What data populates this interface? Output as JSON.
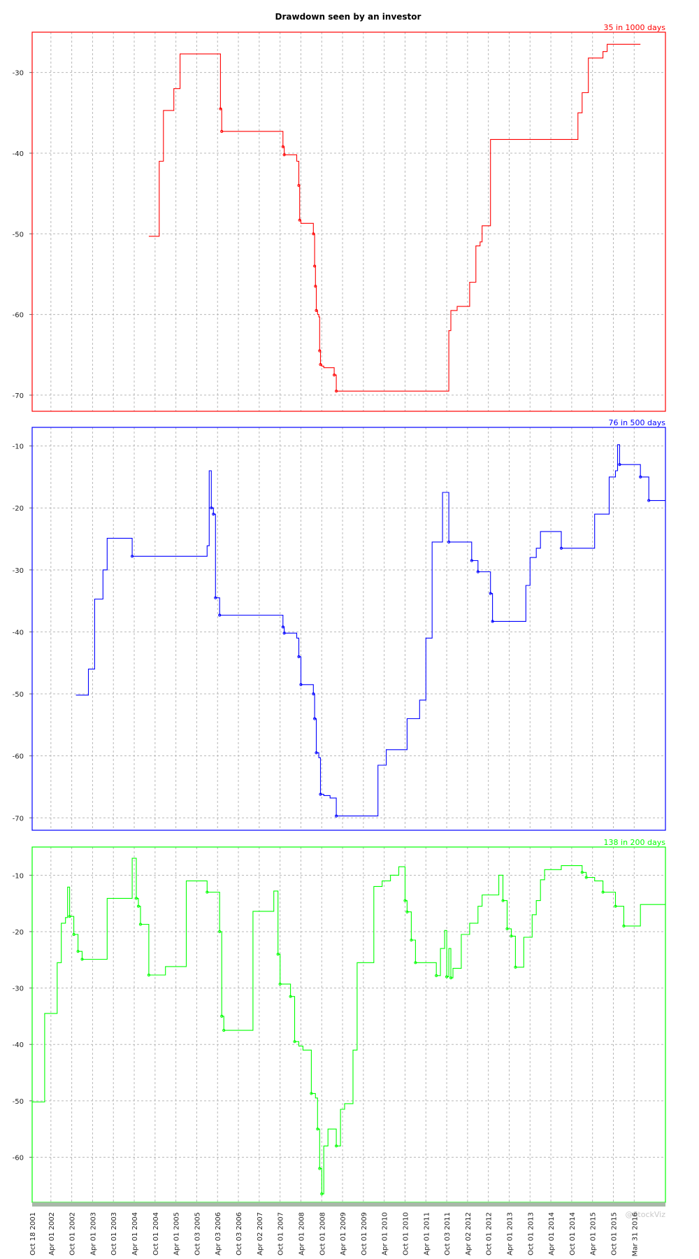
{
  "title": "Drawdown seen by an investor",
  "watermark": "@StockViz",
  "chart_data": [
    {
      "type": "line",
      "panel_label": "35 in 1000 days",
      "color": "#ff0000",
      "ylim": [
        -72,
        -25
      ],
      "yticks": [
        -30,
        -40,
        -50,
        -60,
        -70
      ],
      "grid": true,
      "series": [
        {
          "x": [
            2004.6,
            2004.8,
            2004.85,
            2004.95,
            2005.05,
            2005.1,
            2005.2,
            2005.35,
            2005.45,
            2006.0,
            2006.3,
            2006.32,
            2006.35,
            2006.38,
            2007.8,
            2007.82,
            2007.85,
            2008.0,
            2008.15,
            2008.2,
            2008.22,
            2008.25,
            2008.28,
            2008.3,
            2008.55,
            2008.58,
            2008.6,
            2008.62,
            2008.65,
            2008.68,
            2008.7,
            2008.72,
            2008.75,
            2008.8,
            2008.95,
            2009.05,
            2009.1,
            2009.15,
            2009.2,
            2009.3,
            2009.5,
            2009.55,
            2009.9,
            2010.1,
            2010.3,
            2010.5,
            2010.8,
            2011.0,
            2011.3,
            2011.6,
            2011.75,
            2011.8,
            2011.85,
            2012.0,
            2012.2,
            2012.3,
            2012.45,
            2012.55,
            2012.6,
            2012.8,
            2014.0,
            2014.5,
            2014.8,
            2014.9,
            2015.0,
            2015.15,
            2015.3,
            2015.5,
            2015.6,
            2016.0,
            2016.4
          ],
          "y": [
            -50.3,
            -50.3,
            -41,
            -34.7,
            -34.7,
            -34.7,
            -32,
            -27.7,
            -27.7,
            -27.7,
            -27.7,
            -34.5,
            -37.3,
            -37.3,
            -37.3,
            -39.2,
            -40.2,
            -40.2,
            -41,
            -44,
            -48.3,
            -48.7,
            -48.7,
            -48.7,
            -50,
            -54,
            -56.5,
            -59.5,
            -60,
            -60.3,
            -64.5,
            -66.2,
            -66.4,
            -66.6,
            -66.6,
            -67.5,
            -69.5,
            -69.5,
            -69.5,
            -69.5,
            -69.5,
            -69.5,
            -69.5,
            -69.5,
            -69.5,
            -69.5,
            -69.5,
            -69.5,
            -69.5,
            -69.5,
            -69.5,
            -62,
            -59.5,
            -59,
            -59,
            -56,
            -51.5,
            -51,
            -49,
            -38.3,
            -38.3,
            -38.3,
            -38.3,
            -35,
            -32.5,
            -28.2,
            -28.2,
            -27.4,
            -26.5,
            -26.5,
            -26.5
          ]
        }
      ]
    },
    {
      "type": "line",
      "panel_label": "76 in 500 days",
      "color": "#0000ff",
      "ylim": [
        -72,
        -7
      ],
      "yticks": [
        -10,
        -20,
        -30,
        -40,
        -50,
        -60,
        -70
      ],
      "grid": true,
      "series": [
        {
          "x": [
            2002.85,
            2003.05,
            2003.15,
            2003.3,
            2003.45,
            2003.5,
            2003.6,
            2004.15,
            2004.2,
            2005.6,
            2005.62,
            2005.7,
            2006.0,
            2006.02,
            2006.05,
            2006.1,
            2006.15,
            2006.2,
            2006.3,
            2006.35,
            2007.8,
            2007.82,
            2007.85,
            2008.0,
            2008.15,
            2008.2,
            2008.25,
            2008.3,
            2008.55,
            2008.58,
            2008.62,
            2008.68,
            2008.72,
            2008.8,
            2008.95,
            2009.1,
            2009.3,
            2009.8,
            2010.0,
            2010.1,
            2010.3,
            2010.6,
            2010.8,
            2011.1,
            2011.25,
            2011.4,
            2011.6,
            2011.65,
            2011.8,
            2012.15,
            2012.35,
            2012.5,
            2012.6,
            2012.8,
            2012.85,
            2013.25,
            2013.4,
            2013.55,
            2013.65,
            2013.75,
            2013.9,
            2014.0,
            2014.5,
            2015.0,
            2015.1,
            2015.3,
            2015.5,
            2015.65,
            2015.8,
            2015.85,
            2015.9,
            2016.2,
            2016.4,
            2016.6,
            2017.0
          ],
          "y": [
            -50.2,
            -50.2,
            -46,
            -34.7,
            -34.7,
            -30,
            -24.9,
            -24.9,
            -27.8,
            -27.8,
            -27.8,
            -27.8,
            -26.1,
            -26.1,
            -14,
            -20,
            -21,
            -34.5,
            -37.3,
            -37.3,
            -37.3,
            -39.2,
            -40.2,
            -40.2,
            -41,
            -44,
            -48.5,
            -48.5,
            -50,
            -54,
            -59.5,
            -60.3,
            -66.2,
            -66.4,
            -66.8,
            -69.7,
            -69.7,
            -69.7,
            -69.7,
            -61.5,
            -59,
            -59,
            -54,
            -51,
            -41,
            -25.5,
            -25.5,
            -17.5,
            -25.5,
            -25.5,
            -28.5,
            -30.3,
            -30.3,
            -33.8,
            -38.3,
            -38.3,
            -38.3,
            -38.3,
            -32.5,
            -28,
            -26.5,
            -23.8,
            -26.5,
            -26.5,
            -26.5,
            -21,
            -21,
            -15,
            -14,
            -9.8,
            -13,
            -13,
            -15,
            -18.8,
            -18.8
          ]
        }
      ]
    },
    {
      "type": "line",
      "panel_label": "138 in 200 days",
      "color": "#00ff00",
      "ylim": [
        -68,
        -5
      ],
      "yticks": [
        -10,
        -20,
        -30,
        -40,
        -50,
        -60
      ],
      "grid": true,
      "series": [
        {
          "x": [
            2001.8,
            2002.0,
            2002.1,
            2002.3,
            2002.4,
            2002.5,
            2002.6,
            2002.65,
            2002.7,
            2002.8,
            2002.9,
            2003.0,
            2003.5,
            2003.6,
            2004.0,
            2004.2,
            2004.3,
            2004.35,
            2004.4,
            2004.5,
            2004.6,
            2004.8,
            2005.0,
            2005.4,
            2005.5,
            2005.6,
            2006.0,
            2006.25,
            2006.3,
            2006.35,
            2006.4,
            2006.6,
            2007.0,
            2007.1,
            2007.5,
            2007.6,
            2007.7,
            2007.75,
            2008.0,
            2008.1,
            2008.2,
            2008.3,
            2008.5,
            2008.6,
            2008.65,
            2008.7,
            2008.75,
            2008.8,
            2008.9,
            2009.0,
            2009.1,
            2009.2,
            2009.3,
            2009.5,
            2009.6,
            2009.8,
            2010.0,
            2010.2,
            2010.4,
            2010.6,
            2010.75,
            2010.8,
            2010.9,
            2011.0,
            2011.1,
            2011.3,
            2011.5,
            2011.6,
            2011.7,
            2011.75,
            2011.8,
            2011.85,
            2011.9,
            2012.0,
            2012.1,
            2012.3,
            2012.5,
            2012.6,
            2012.8,
            2013.0,
            2013.1,
            2013.2,
            2013.3,
            2013.4,
            2013.5,
            2013.6,
            2013.7,
            2013.8,
            2013.9,
            2014.0,
            2014.1,
            2014.3,
            2014.5,
            2014.7,
            2015.0,
            2015.1,
            2015.3,
            2015.5,
            2015.6,
            2015.8,
            2016.0,
            2016.3,
            2016.4,
            2016.6,
            2017.0
          ],
          "y": [
            -50.2,
            -50.2,
            -34.5,
            -34.5,
            -25.5,
            -18.5,
            -17.5,
            -12.1,
            -17.3,
            -20.5,
            -23.5,
            -24.9,
            -24.9,
            -14.1,
            -14.1,
            -7,
            -14.1,
            -15.5,
            -18.7,
            -18.7,
            -27.7,
            -27.7,
            -26.2,
            -26.2,
            -11,
            -11,
            -13,
            -13,
            -20,
            -35,
            -37.5,
            -37.5,
            -37.5,
            -16.4,
            -16.4,
            -12.8,
            -24,
            -29.3,
            -31.5,
            -39.5,
            -40.3,
            -41,
            -48.7,
            -49.5,
            -55,
            -62,
            -66.5,
            -58,
            -55,
            -55,
            -58,
            -51.5,
            -50.5,
            -41,
            -25.5,
            -25.5,
            -12,
            -11,
            -10,
            -8.5,
            -14.5,
            -16.5,
            -21.5,
            -25.5,
            -25.5,
            -25.5,
            -27.8,
            -23,
            -19.8,
            -28,
            -23,
            -28.2,
            -26.5,
            -26.5,
            -20.5,
            -18.5,
            -15.5,
            -13.5,
            -13.5,
            -10,
            -14.5,
            -19.5,
            -20.8,
            -26.3,
            -26.3,
            -21,
            -21,
            -17,
            -14.5,
            -10.8,
            -9,
            -9,
            -8.3,
            -8.3,
            -9.5,
            -10.4,
            -11,
            -13,
            -13,
            -15.5,
            -19,
            -19,
            -15.2,
            -15.2,
            -15.2
          ]
        }
      ]
    }
  ],
  "x_axis": {
    "tick_labels": [
      "Oct 18 2001",
      "Apr 01 2002",
      "Oct 01 2002",
      "Apr 01 2003",
      "Oct 01 2003",
      "Apr 01 2004",
      "Oct 01 2004",
      "Apr 01 2005",
      "Oct 03 2005",
      "Apr 03 2006",
      "Oct 03 2006",
      "Apr 02 2007",
      "Oct 01 2007",
      "Apr 01 2008",
      "Oct 01 2008",
      "Apr 01 2009",
      "Oct 01 2009",
      "Apr 01 2010",
      "Oct 01 2010",
      "Apr 01 2011",
      "Oct 03 2011",
      "Apr 02 2012",
      "Oct 01 2012",
      "Apr 01 2013",
      "Oct 01 2013",
      "Apr 01 2014",
      "Oct 01 2014",
      "Apr 01 2015",
      "Oct 01 2015",
      "Mar 31 2016"
    ],
    "tick_values": [
      2001.8,
      2002.25,
      2002.75,
      2003.25,
      2003.75,
      2004.25,
      2004.75,
      2005.25,
      2005.75,
      2006.25,
      2006.75,
      2007.25,
      2007.75,
      2008.25,
      2008.75,
      2009.25,
      2009.75,
      2010.25,
      2010.75,
      2011.25,
      2011.75,
      2012.25,
      2012.75,
      2013.25,
      2013.75,
      2014.25,
      2014.75,
      2015.25,
      2015.75,
      2016.25
    ],
    "range": [
      2001.8,
      2017.0
    ]
  }
}
